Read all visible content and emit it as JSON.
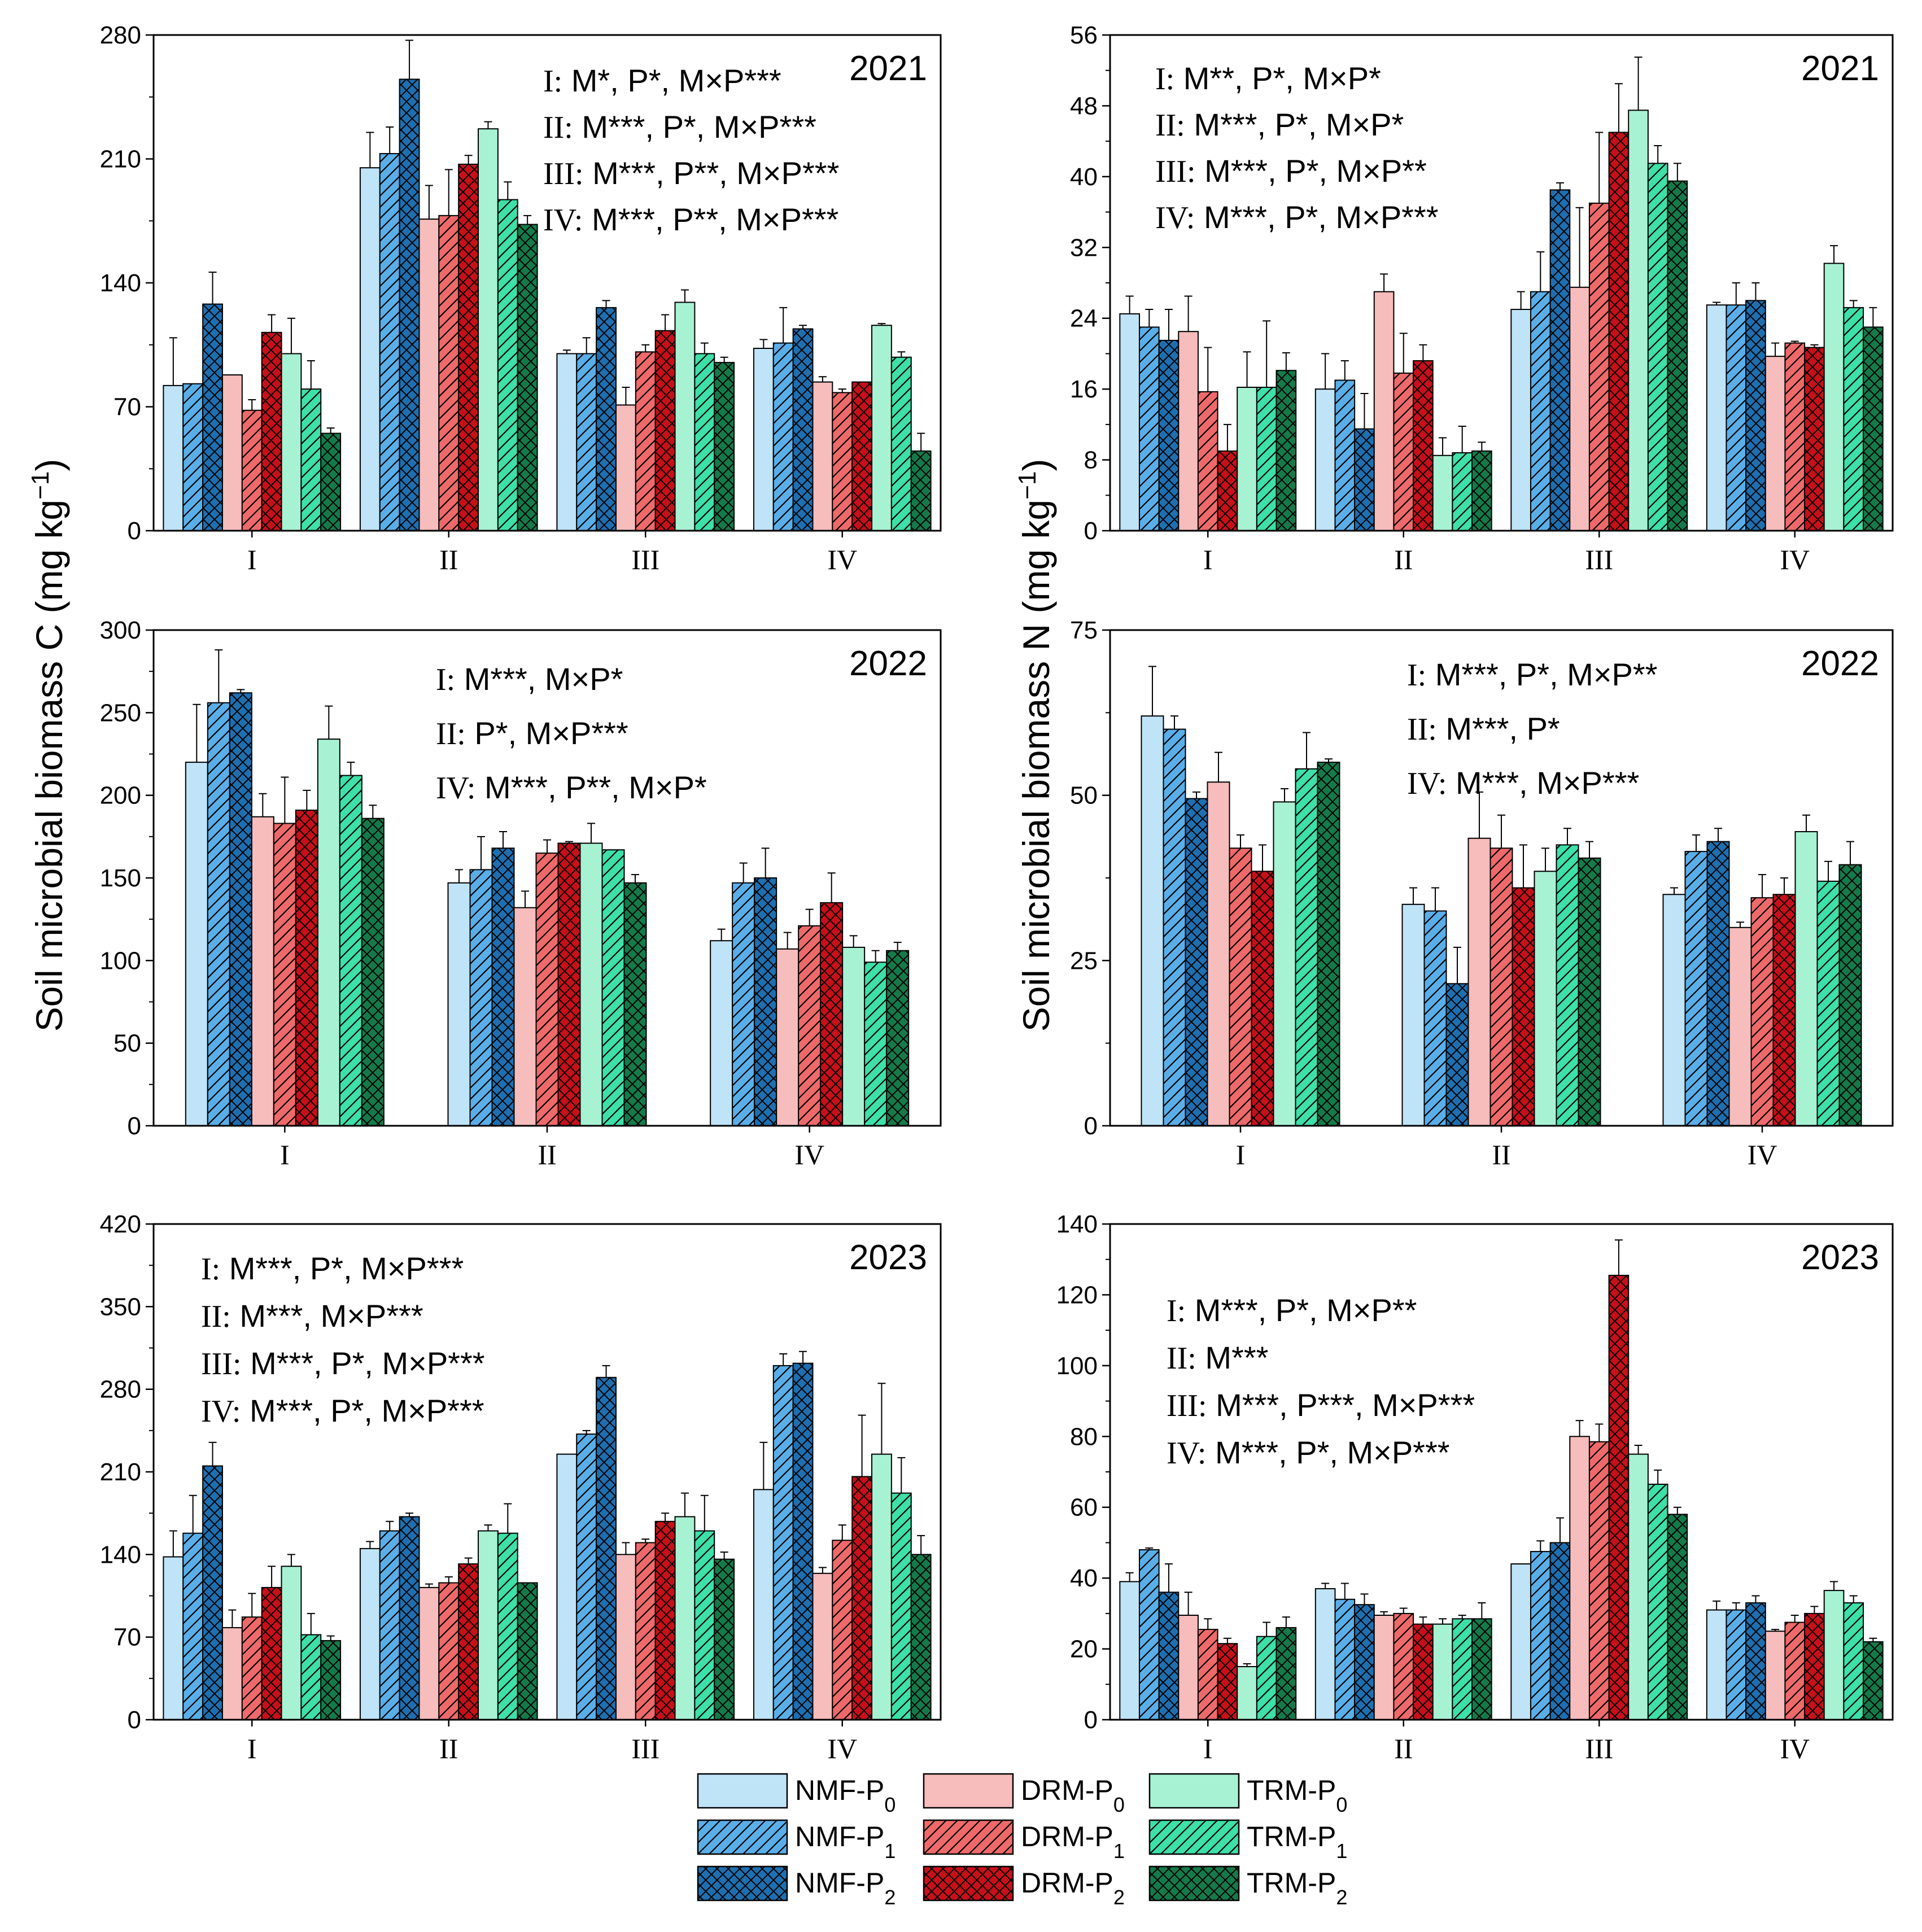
{
  "colors": {
    "NMF-P0": "#bfe3f7",
    "NMF-P1": "#5aaee8",
    "NMF-P2": "#1e6fb0",
    "DRM-P0": "#f7bcbc",
    "DRM-P1": "#ee6a6a",
    "DRM-P2": "#c8101a",
    "TRM-P0": "#a8f2d4",
    "TRM-P1": "#3de0a8",
    "TRM-P2": "#157a4a"
  },
  "y_axis_labels": {
    "left": "Soil microbial biomass C (mg kg⁻¹)",
    "right": "Soil microbial biomass N (mg kg⁻¹)"
  },
  "legend": {
    "items": [
      {
        "key": "NMF-P0",
        "prefix": "NMF-P",
        "sub": "0",
        "pattern": "none"
      },
      {
        "key": "DRM-P0",
        "prefix": "DRM-P",
        "sub": "0",
        "pattern": "none"
      },
      {
        "key": "TRM-P0",
        "prefix": "TRM-P",
        "sub": "0",
        "pattern": "none"
      },
      {
        "key": "NMF-P1",
        "prefix": "NMF-P",
        "sub": "1",
        "pattern": "hatch"
      },
      {
        "key": "DRM-P1",
        "prefix": "DRM-P",
        "sub": "1",
        "pattern": "hatch"
      },
      {
        "key": "TRM-P1",
        "prefix": "TRM-P",
        "sub": "1",
        "pattern": "hatch"
      },
      {
        "key": "NMF-P2",
        "prefix": "NMF-P",
        "sub": "2",
        "pattern": "cross"
      },
      {
        "key": "DRM-P2",
        "prefix": "DRM-P",
        "sub": "2",
        "pattern": "cross"
      },
      {
        "key": "TRM-P2",
        "prefix": "TRM-P",
        "sub": "2",
        "pattern": "cross"
      }
    ]
  },
  "chart_data": [
    {
      "id": "C2021",
      "type": "bar",
      "year": "2021",
      "ylim": [
        0,
        280
      ],
      "yticks": [
        0,
        70,
        140,
        210,
        280
      ],
      "categories": [
        "I",
        "II",
        "III",
        "IV"
      ],
      "series_order": [
        "NMF-P0",
        "NMF-P1",
        "NMF-P2",
        "DRM-P0",
        "DRM-P1",
        "DRM-P2",
        "TRM-P0",
        "TRM-P1",
        "TRM-P2"
      ],
      "values": [
        [
          82,
          83,
          128,
          88,
          68,
          112,
          100,
          80,
          55
        ],
        [
          205,
          213,
          255,
          176,
          178,
          207,
          227,
          187,
          173
        ],
        [
          100,
          100,
          126,
          71,
          101,
          113,
          129,
          100,
          95
        ],
        [
          103,
          106,
          114,
          84,
          78,
          84,
          116,
          98,
          45
        ]
      ],
      "errors": [
        [
          27,
          0,
          18,
          0,
          6,
          10,
          20,
          16,
          3
        ],
        [
          20,
          15,
          22,
          19,
          26,
          5,
          4,
          10,
          5
        ],
        [
          2,
          9,
          4,
          10,
          4,
          9,
          7,
          6,
          3
        ],
        [
          5,
          20,
          2,
          3,
          2,
          0,
          1,
          3,
          10
        ]
      ],
      "annotations": [
        "I: M*, P*, M×P***",
        "II: M***, P*, M×P***",
        "III: M***, P**, M×P***",
        "IV: M***, P**, M×P***"
      ]
    },
    {
      "id": "N2021",
      "type": "bar",
      "year": "2021",
      "ylim": [
        0,
        56
      ],
      "yticks": [
        0,
        8,
        16,
        24,
        32,
        40,
        48,
        56
      ],
      "categories": [
        "I",
        "II",
        "III",
        "IV"
      ],
      "series_order": [
        "NMF-P0",
        "NMF-P1",
        "NMF-P2",
        "DRM-P0",
        "DRM-P1",
        "DRM-P2",
        "TRM-P0",
        "TRM-P1",
        "TRM-P2"
      ],
      "values": [
        [
          24.5,
          23,
          21.5,
          22.5,
          15.7,
          9,
          16.2,
          16.2,
          18.1
        ],
        [
          16,
          17,
          11.5,
          27,
          17.8,
          19.2,
          8.5,
          8.8,
          9
        ],
        [
          25,
          27,
          38.5,
          27.5,
          37,
          45,
          47.5,
          41.5,
          39.5
        ],
        [
          25.5,
          25.5,
          26,
          19.7,
          21.2,
          20.7,
          30.2,
          25.2,
          23
        ]
      ],
      "errors": [
        [
          2,
          2,
          3.5,
          4,
          5,
          3,
          4,
          7.5,
          2
        ],
        [
          4,
          2.2,
          4,
          2,
          4.5,
          1.8,
          2,
          3,
          1
        ],
        [
          2,
          4.5,
          0.8,
          9,
          8,
          5.5,
          6,
          2,
          2
        ],
        [
          0.3,
          2.5,
          2,
          1.5,
          0.2,
          0.3,
          2,
          0.8,
          2.2
        ]
      ],
      "annotations": [
        "I: M**, P*, M×P*",
        "II: M***, P*, M×P*",
        "III: M***, P*, M×P**",
        "IV: M***, P*, M×P***"
      ]
    },
    {
      "id": "C2022",
      "type": "bar",
      "year": "2022",
      "ylim": [
        0,
        300
      ],
      "yticks": [
        0,
        50,
        100,
        150,
        200,
        250,
        300
      ],
      "categories": [
        "I",
        "II",
        "IV"
      ],
      "series_order": [
        "NMF-P0",
        "NMF-P1",
        "NMF-P2",
        "DRM-P0",
        "DRM-P1",
        "DRM-P2",
        "TRM-P0",
        "TRM-P1",
        "TRM-P2"
      ],
      "values": [
        [
          220,
          256,
          262,
          187,
          183,
          191,
          234,
          212,
          186
        ],
        [
          147,
          155,
          168,
          132,
          165,
          171,
          171,
          167,
          147
        ],
        [
          112,
          147,
          150,
          107,
          121,
          135,
          108,
          99,
          106
        ]
      ],
      "errors": [
        [
          35,
          32,
          2,
          14,
          28,
          12,
          20,
          8,
          8
        ],
        [
          8,
          20,
          10,
          10,
          8,
          1,
          12,
          0,
          5
        ],
        [
          7,
          12,
          18,
          10,
          10,
          18,
          7,
          7,
          5
        ]
      ],
      "annotations": [
        "I: M***, M×P*",
        "II: P*, M×P***",
        "IV: M***, P**, M×P*"
      ]
    },
    {
      "id": "N2022",
      "type": "bar",
      "year": "2022",
      "ylim": [
        0,
        75
      ],
      "yticks": [
        0,
        25,
        50,
        75
      ],
      "categories": [
        "I",
        "II",
        "IV"
      ],
      "series_order": [
        "NMF-P0",
        "NMF-P1",
        "NMF-P2",
        "DRM-P0",
        "DRM-P1",
        "DRM-P2",
        "TRM-P0",
        "TRM-P1",
        "TRM-P2"
      ],
      "values": [
        [
          62,
          60,
          49.5,
          52,
          42,
          38.5,
          49,
          54,
          55
        ],
        [
          33.5,
          32.5,
          21.5,
          43.5,
          42,
          36,
          38.5,
          42.5,
          40.5
        ],
        [
          35,
          41.5,
          43,
          30,
          34.5,
          35,
          44.5,
          37,
          39.5
        ]
      ],
      "errors": [
        [
          7.5,
          2,
          1,
          4.5,
          2,
          4,
          2,
          5.5,
          0.5
        ],
        [
          2.5,
          3.5,
          5.5,
          7,
          5,
          6.5,
          3.5,
          2.5,
          2.5
        ],
        [
          1,
          2.5,
          2,
          0.8,
          3.5,
          2.5,
          2.5,
          3,
          3.5
        ]
      ],
      "annotations": [
        "I: M***, P*, M×P**",
        "II: M***, P*",
        "IV: M***, M×P***"
      ]
    },
    {
      "id": "C2023",
      "type": "bar",
      "year": "2023",
      "ylim": [
        0,
        420
      ],
      "yticks": [
        0,
        70,
        140,
        210,
        280,
        350,
        420
      ],
      "categories": [
        "I",
        "II",
        "III",
        "IV"
      ],
      "series_order": [
        "NMF-P0",
        "NMF-P1",
        "NMF-P2",
        "DRM-P0",
        "DRM-P1",
        "DRM-P2",
        "TRM-P0",
        "TRM-P1",
        "TRM-P2"
      ],
      "values": [
        [
          138,
          158,
          215,
          78,
          87,
          112,
          130,
          72,
          67
        ],
        [
          145,
          160,
          172,
          112,
          116,
          132,
          160,
          158,
          116
        ],
        [
          225,
          242,
          290,
          140,
          150,
          168,
          172,
          160,
          136
        ],
        [
          195,
          300,
          302,
          124,
          152,
          206,
          225,
          192,
          140
        ]
      ],
      "errors": [
        [
          22,
          32,
          20,
          15,
          20,
          18,
          10,
          18,
          4
        ],
        [
          6,
          8,
          3,
          3,
          5,
          5,
          5,
          25,
          0
        ],
        [
          0,
          3,
          10,
          10,
          3,
          7,
          20,
          30,
          6
        ],
        [
          40,
          10,
          10,
          5,
          13,
          52,
          60,
          30,
          16
        ]
      ],
      "annotations": [
        "I: M***, P*, M×P***",
        "II: M***, M×P***",
        "III: M***, P*, M×P***",
        "IV: M***, P*, M×P***"
      ]
    },
    {
      "id": "N2023",
      "type": "bar",
      "year": "2023",
      "ylim": [
        0,
        140
      ],
      "yticks": [
        0,
        20,
        40,
        60,
        80,
        100,
        120,
        140
      ],
      "categories": [
        "I",
        "II",
        "III",
        "IV"
      ],
      "series_order": [
        "NMF-P0",
        "NMF-P1",
        "NMF-P2",
        "DRM-P0",
        "DRM-P1",
        "DRM-P2",
        "TRM-P0",
        "TRM-P1",
        "TRM-P2"
      ],
      "values": [
        [
          39,
          48,
          36,
          29.5,
          25.5,
          21.5,
          15,
          23.5,
          26
        ],
        [
          37,
          34,
          32.5,
          29.5,
          30,
          27,
          27,
          28.5,
          28.5
        ],
        [
          44,
          47.5,
          50,
          80,
          78.5,
          125.5,
          75,
          66.5,
          58
        ],
        [
          31,
          31,
          33,
          25,
          27.5,
          30,
          36.5,
          33,
          22
        ]
      ],
      "errors": [
        [
          2.5,
          0.5,
          8,
          6.5,
          3,
          1.5,
          0.8,
          4,
          3
        ],
        [
          1.5,
          4.5,
          3,
          1,
          1.5,
          2,
          1.5,
          1,
          4.5
        ],
        [
          0,
          3,
          7,
          4.5,
          5,
          10,
          2.5,
          4,
          2
        ],
        [
          2.5,
          2,
          2,
          0.5,
          2,
          2,
          2.5,
          2,
          1
        ]
      ],
      "annotations": [
        "I: M***, P*, M×P**",
        "II: M***",
        "III: M***, P***, M×P***",
        "IV: M***, P*, M×P***"
      ]
    }
  ]
}
